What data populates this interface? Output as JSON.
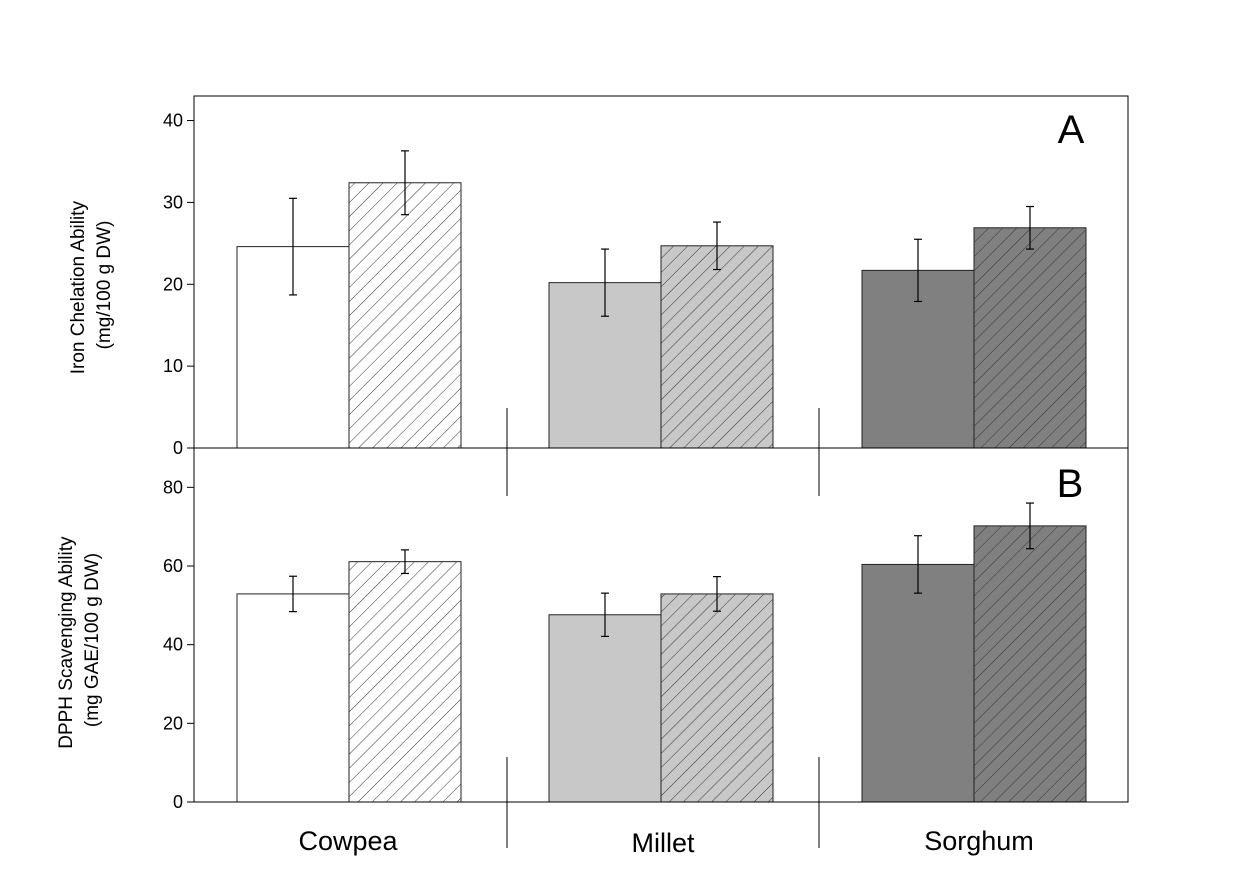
{
  "chart_data": [
    {
      "type": "bar",
      "panel": "A",
      "ylabel": [
        "Iron Chelation Ability",
        "(mg/100 g DW)"
      ],
      "ylim": [
        0,
        43
      ],
      "yticks": [
        0,
        10,
        20,
        30,
        40
      ],
      "categories": [
        "Cowpea",
        "Millet",
        "Sorghum"
      ],
      "bars": [
        {
          "category": "Cowpea",
          "hatched": false,
          "value": 24.6,
          "error": 5.9,
          "color": "#ffffff"
        },
        {
          "category": "Cowpea",
          "hatched": true,
          "value": 32.4,
          "error": 3.9,
          "color": "#ffffff"
        },
        {
          "category": "Millet",
          "hatched": false,
          "value": 20.2,
          "error": 4.1,
          "color": "#c8c8c8"
        },
        {
          "category": "Millet",
          "hatched": true,
          "value": 24.7,
          "error": 2.9,
          "color": "#c8c8c8"
        },
        {
          "category": "Sorghum",
          "hatched": false,
          "value": 21.7,
          "error": 3.8,
          "color": "#808080"
        },
        {
          "category": "Sorghum",
          "hatched": true,
          "value": 26.9,
          "error": 2.6,
          "color": "#808080"
        }
      ]
    },
    {
      "type": "bar",
      "panel": "B",
      "ylabel": [
        "DPPH Scavenging Ability",
        "(mg GAE/100 g DW)"
      ],
      "ylim": [
        0,
        90
      ],
      "yticks": [
        0,
        20,
        40,
        60,
        80
      ],
      "categories": [
        "Cowpea",
        "Millet",
        "Sorghum"
      ],
      "bars": [
        {
          "category": "Cowpea",
          "hatched": false,
          "value": 52.9,
          "error": 4.5,
          "color": "#ffffff"
        },
        {
          "category": "Cowpea",
          "hatched": true,
          "value": 61.1,
          "error": 3.0,
          "color": "#ffffff"
        },
        {
          "category": "Millet",
          "hatched": false,
          "value": 47.6,
          "error": 5.5,
          "color": "#c8c8c8"
        },
        {
          "category": "Millet",
          "hatched": true,
          "value": 52.9,
          "error": 4.4,
          "color": "#c8c8c8"
        },
        {
          "category": "Sorghum",
          "hatched": false,
          "value": 60.4,
          "error": 7.3,
          "color": "#808080"
        },
        {
          "category": "Sorghum",
          "hatched": true,
          "value": 70.2,
          "error": 5.8,
          "color": "#808080"
        }
      ]
    }
  ]
}
